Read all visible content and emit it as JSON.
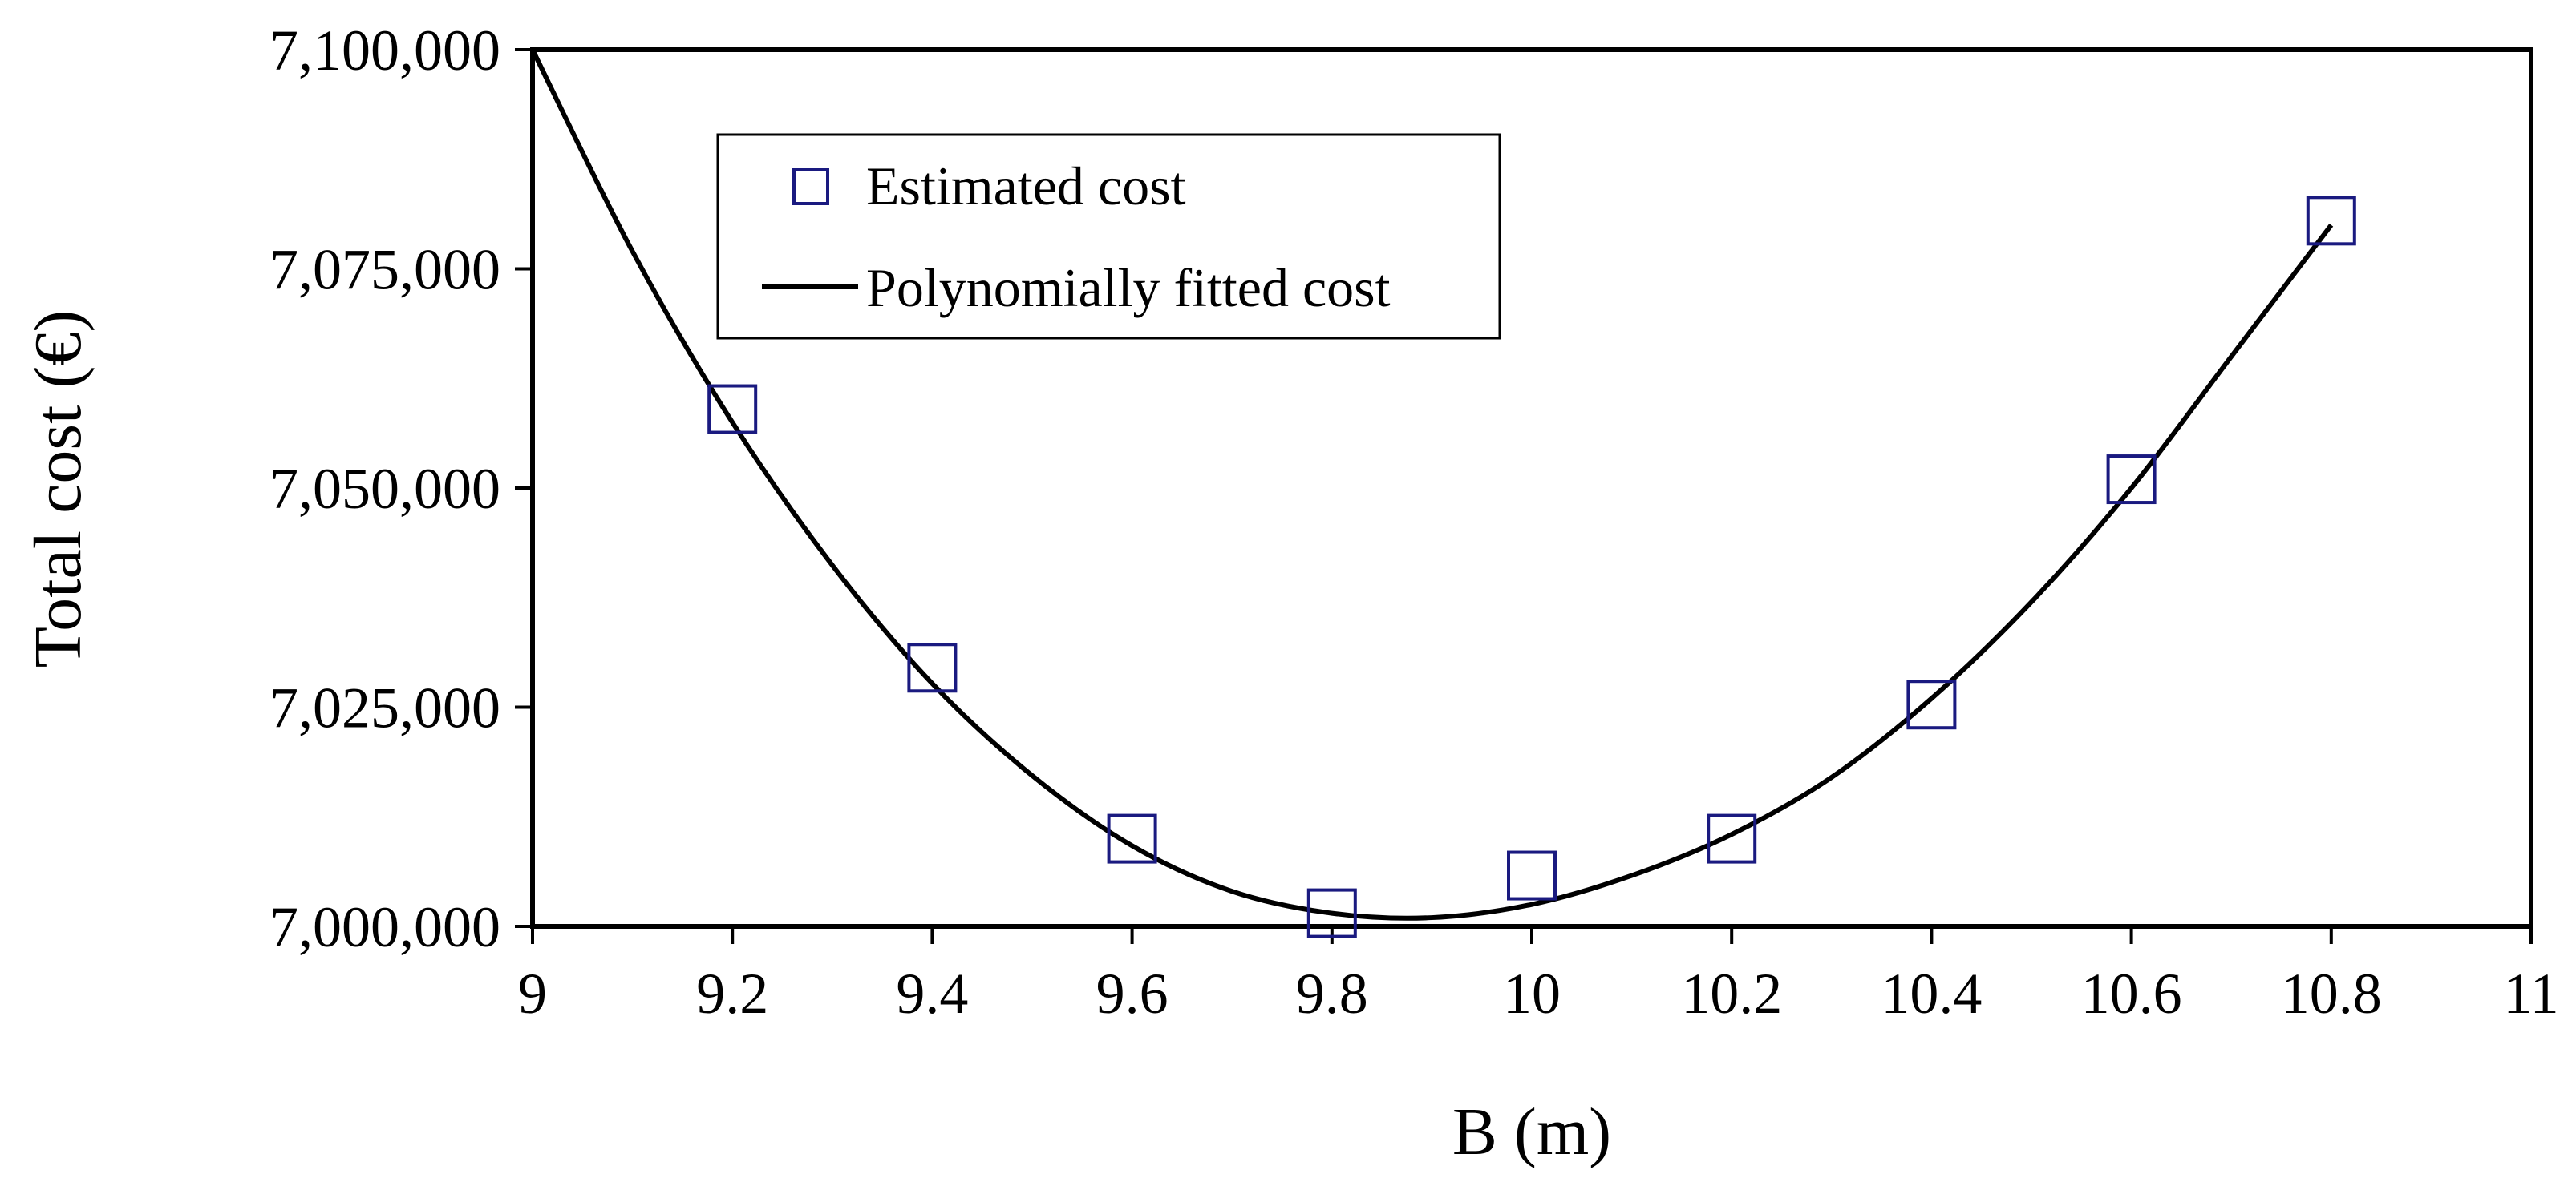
{
  "chart_data": {
    "type": "scatter",
    "title": "",
    "xlabel": "B (m)",
    "ylabel": "Total cost (€)",
    "xlim": [
      9,
      11
    ],
    "ylim": [
      7000000,
      7100000
    ],
    "x_ticks": [
      9,
      9.2,
      9.4,
      9.6,
      9.8,
      10,
      10.2,
      10.4,
      10.6,
      10.8,
      11
    ],
    "x_tick_labels": [
      "9",
      "9.2",
      "9.4",
      "9.6",
      "9.8",
      "10",
      "10.2",
      "10.4",
      "10.6",
      "10.8",
      "11"
    ],
    "y_ticks": [
      7000000,
      7025000,
      7050000,
      7075000,
      7100000
    ],
    "y_tick_labels": [
      "7,000,000",
      "7,025,000",
      "7,050,000",
      "7,075,000",
      "7,100,000"
    ],
    "legend_position": "top-left",
    "grid": false,
    "series": [
      {
        "name": "Estimated cost",
        "kind": "markers",
        "marker": "open-square",
        "color": "#1a1a80",
        "x": [
          9.2,
          9.4,
          9.6,
          9.8,
          10.0,
          10.2,
          10.4,
          10.6,
          10.8
        ],
        "y": [
          7059000,
          7029500,
          7010000,
          7001500,
          7005800,
          7010000,
          7025300,
          7051000,
          7080500
        ]
      },
      {
        "name": "Polynomially fitted cost",
        "kind": "line",
        "color": "#000000",
        "x": [
          9.0,
          9.1,
          9.2,
          9.3,
          9.4,
          9.5,
          9.6,
          9.7,
          9.8,
          9.9,
          10.0,
          10.1,
          10.2,
          10.3,
          10.4,
          10.5,
          10.6,
          10.7,
          10.8
        ],
        "y": [
          7100000,
          7077000,
          7057500,
          7041200,
          7027700,
          7017200,
          7009200,
          7004000,
          7001500,
          7001000,
          7002500,
          7005800,
          7010500,
          7017000,
          7026000,
          7037000,
          7050000,
          7065000,
          7080000
        ]
      }
    ]
  }
}
